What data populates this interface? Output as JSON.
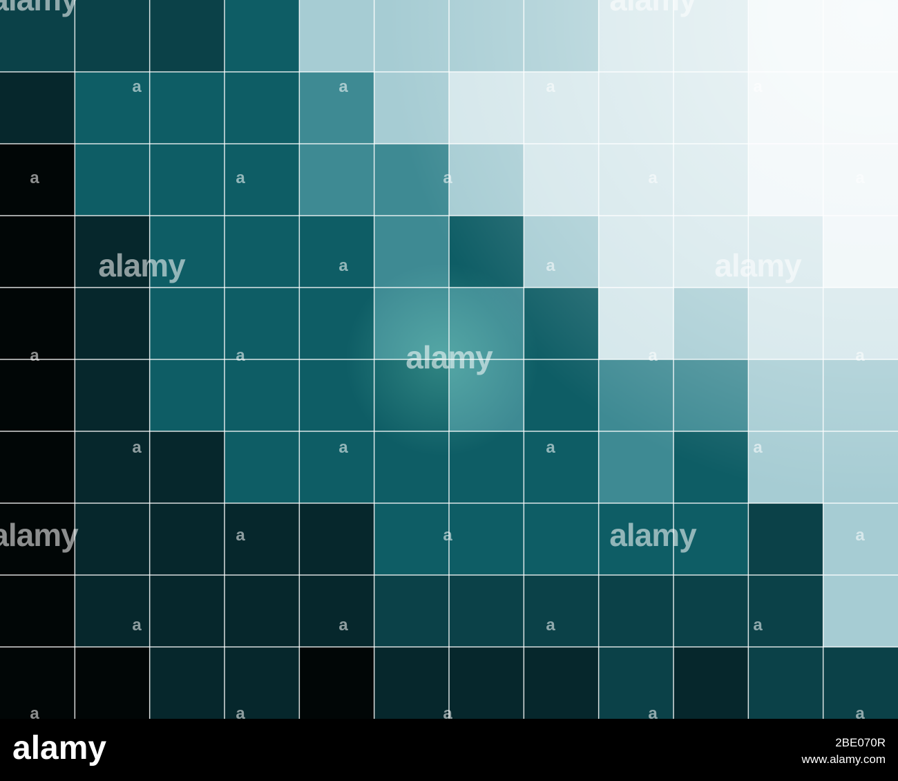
{
  "watermark": {
    "logo": "alamy",
    "mark": "a"
  },
  "footer": {
    "logo": "alamy",
    "image_id": "2BE070R",
    "url": "www.alamy.com"
  }
}
